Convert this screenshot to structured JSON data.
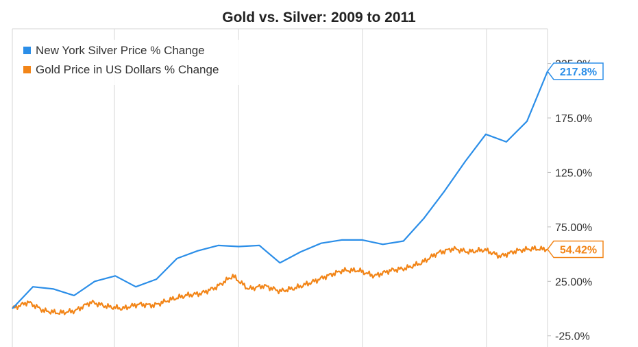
{
  "chart_data": {
    "type": "line",
    "title": "Gold vs. Silver: 2009 to 2011",
    "xlabel": "",
    "ylabel": "",
    "x_range": [
      "2009",
      "2011"
    ],
    "ylim": [
      -30,
      235
    ],
    "y_ticks": [
      "225.0%",
      "175.0%",
      "125.0%",
      "75.00%",
      "25.00%",
      "-25.0%"
    ],
    "y_tick_values": [
      225,
      175,
      125,
      75,
      25,
      -25
    ],
    "grid": "vertical",
    "legend_position": "top-left",
    "series": [
      {
        "name": "New York Silver Price % Change",
        "color": "#2b8ee8",
        "end_label": "217.8%",
        "values": [
          0,
          20,
          18,
          12,
          25,
          30,
          20,
          27,
          46,
          53,
          58,
          57,
          58,
          42,
          52,
          60,
          63,
          63,
          59,
          62,
          83,
          108,
          135,
          160,
          153,
          172,
          217.8
        ]
      },
      {
        "name": "Gold Price in US Dollars % Change",
        "color": "#f28518",
        "end_label": "54.42%",
        "values": [
          0,
          6,
          -2,
          -4,
          -2,
          6,
          2,
          0,
          4,
          3,
          8,
          12,
          14,
          20,
          30,
          18,
          21,
          16,
          19,
          24,
          30,
          35,
          35,
          30,
          35,
          37,
          42,
          51,
          55,
          52,
          54,
          48,
          53,
          55,
          54.42
        ]
      }
    ]
  }
}
